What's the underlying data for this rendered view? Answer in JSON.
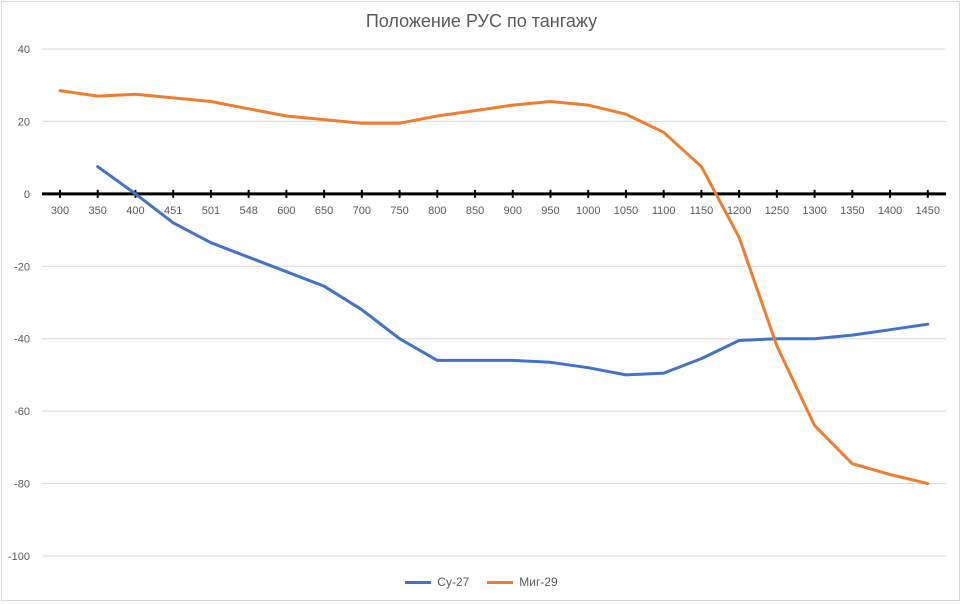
{
  "chart_data": {
    "type": "line",
    "title": "Положение РУС по тангажу",
    "categories": [
      "300",
      "350",
      "400",
      "451",
      "501",
      "548",
      "600",
      "650",
      "700",
      "750",
      "800",
      "850",
      "900",
      "950",
      "1000",
      "1050",
      "1100",
      "1150",
      "1200",
      "1250",
      "1300",
      "1350",
      "1400",
      "1450"
    ],
    "ylim": [
      -100,
      40
    ],
    "yticks": [
      "40",
      "20",
      "0",
      "-20",
      "-40",
      "-60",
      "-80",
      "-100"
    ],
    "grid": true,
    "legend_position": "bottom",
    "series": [
      {
        "name": "Су-27",
        "color": "#4472C4",
        "values": [
          null,
          7.5,
          0,
          -8,
          -13.5,
          -17.5,
          -21.5,
          -25.5,
          -32,
          -40,
          -46,
          -46,
          -46,
          -46.5,
          -48,
          -50,
          -49.5,
          -45.5,
          -40.5,
          -40,
          -40,
          -39,
          -37.5,
          -36
        ]
      },
      {
        "name": "Миг-29",
        "color": "#ED7D31",
        "values": [
          28.5,
          27,
          27.5,
          26.5,
          25.5,
          23.5,
          21.5,
          20.5,
          19.5,
          19.5,
          21.5,
          23,
          24.5,
          25.5,
          24.5,
          22,
          17,
          7.5,
          -12,
          -42,
          -64,
          -74.5,
          -77.5,
          -80
        ]
      }
    ]
  }
}
